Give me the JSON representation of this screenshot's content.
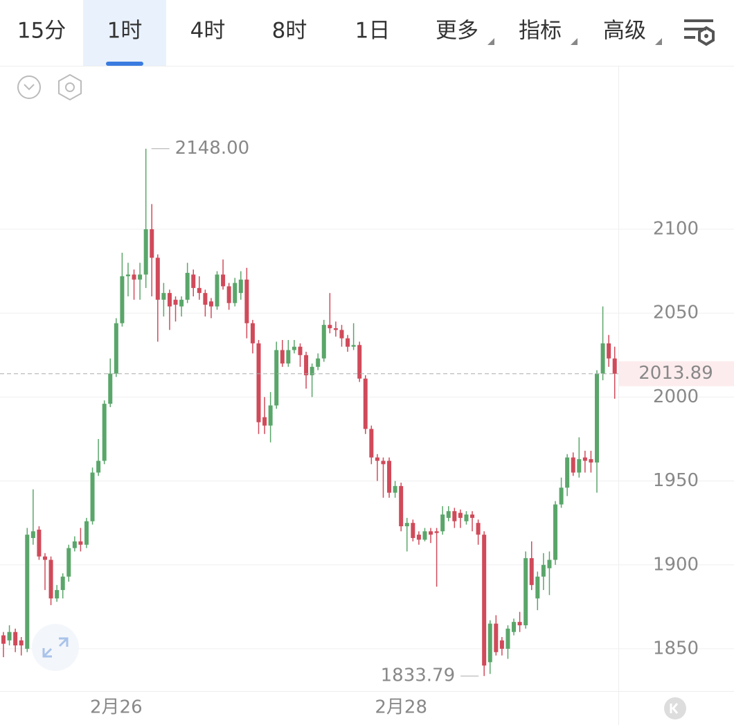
{
  "toolbar": {
    "tabs": [
      "15分",
      "1时",
      "4时",
      "8时",
      "1日",
      "更多",
      "指标",
      "高级"
    ],
    "active": 1
  },
  "chart_data": {
    "type": "candlestick",
    "categories": [
      null,
      null,
      null,
      null,
      null,
      null,
      null,
      null,
      null,
      null,
      null,
      null,
      null,
      null,
      null,
      null,
      null,
      null,
      null,
      "2月26",
      null,
      null,
      null,
      null,
      null,
      null,
      null,
      null,
      null,
      null,
      null,
      null,
      null,
      null,
      null,
      null,
      null,
      null,
      null,
      null,
      null,
      null,
      null,
      null,
      null,
      null,
      null,
      null,
      null,
      null,
      null,
      null,
      null,
      null,
      null,
      null,
      null,
      null,
      null,
      null,
      null,
      null,
      null,
      null,
      null,
      null,
      null,
      "2月28",
      null,
      null,
      null,
      null,
      null,
      null,
      null,
      null,
      null,
      null,
      null,
      null,
      null,
      null,
      null,
      null,
      null,
      null,
      null,
      null,
      null,
      null,
      null,
      null,
      null,
      null,
      null,
      null,
      null,
      null,
      null,
      null,
      null,
      null,
      null,
      null
    ],
    "open": [
      1858,
      1855,
      1860,
      1855,
      1850,
      1916,
      1921,
      1905,
      1903,
      1880,
      1885,
      1893,
      1910,
      1914,
      1912,
      1926,
      1955,
      1962,
      1996,
      2014,
      2044,
      2072,
      2073,
      2070,
      2073,
      2100,
      2083,
      2058,
      2062,
      2058,
      2054,
      2058,
      2073,
      2065,
      2062,
      2057,
      2054,
      2073,
      2066,
      2056,
      2062,
      2070,
      2044,
      2032,
      1988,
      1983,
      1995,
      2028,
      2020,
      2028,
      2030,
      2025,
      2013,
      2018,
      2023,
      2043,
      2041,
      2040,
      2035,
      2030,
      2031,
      2011,
      1981,
      1964,
      1962,
      1962,
      1943,
      1947,
      1923,
      1925,
      1918,
      1915,
      1920,
      1920,
      1920,
      1928,
      1932,
      1931,
      1926,
      1930,
      1925,
      1918,
      1842,
      1865,
      1855,
      1850,
      1860,
      1866,
      1864,
      1904,
      1880,
      1893,
      1898,
      1903,
      1936,
      1946,
      1964,
      1955,
      1964,
      1963,
      1961,
      2014,
      2032,
      2023
    ],
    "high": [
      1860,
      1864,
      1862,
      1857,
      1922,
      1945,
      1923,
      1907,
      1905,
      1888,
      1895,
      1912,
      1917,
      1922,
      1928,
      1958,
      1975,
      1998,
      2023,
      2047,
      2086,
      2080,
      2076,
      2080,
      2148,
      2115,
      2085,
      2068,
      2064,
      2060,
      2060,
      2080,
      2076,
      2072,
      2064,
      2059,
      2075,
      2082,
      2068,
      2071,
      2075,
      2077,
      2046,
      2034,
      2000,
      2003,
      2033,
      2034,
      2034,
      2034,
      2032,
      2027,
      2020,
      2026,
      2046,
      2062,
      2045,
      2043,
      2037,
      2044,
      2033,
      2013,
      1983,
      1966,
      1964,
      1964,
      1950,
      1949,
      1928,
      1927,
      1920,
      1922,
      1922,
      1922,
      1935,
      1935,
      1934,
      1933,
      1932,
      1932,
      1927,
      1920,
      1867,
      1870,
      1857,
      1864,
      1868,
      1872,
      1908,
      1914,
      1896,
      1907,
      1908,
      1938,
      1952,
      1966,
      1967,
      1976,
      1968,
      1968,
      2016,
      2054,
      2037,
      2030
    ],
    "low": [
      1845,
      1852,
      1848,
      1846,
      1848,
      1912,
      1903,
      1885,
      1876,
      1878,
      1880,
      1890,
      1908,
      1908,
      1910,
      1924,
      1953,
      1960,
      1994,
      2012,
      2042,
      2060,
      2058,
      2058,
      2065,
      2060,
      2033,
      2048,
      2040,
      2045,
      2048,
      2056,
      2060,
      2058,
      2048,
      2047,
      2052,
      2064,
      2052,
      2054,
      2058,
      2035,
      2026,
      1978,
      1978,
      1973,
      1993,
      2018,
      2018,
      2026,
      2018,
      2005,
      2000,
      2016,
      2021,
      2038,
      2036,
      2030,
      2027,
      2028,
      2009,
      1978,
      1960,
      1950,
      1940,
      1940,
      1940,
      1920,
      1908,
      1914,
      1912,
      1914,
      1913,
      1887,
      1918,
      1926,
      1922,
      1922,
      1924,
      1920,
      1912,
      1833.79,
      1835,
      1846,
      1846,
      1844,
      1858,
      1860,
      1862,
      1885,
      1873,
      1885,
      1882,
      1900,
      1934,
      1941,
      1953,
      1952,
      1955,
      1955,
      1943,
      2010,
      2018,
      1999
    ],
    "close": [
      1853,
      1860,
      1852,
      1852,
      1918,
      1920,
      1905,
      1903,
      1880,
      1885,
      1893,
      1910,
      1914,
      1912,
      1926,
      1955,
      1962,
      1996,
      2014,
      2044,
      2072,
      2073,
      2070,
      2073,
      2100,
      2083,
      2058,
      2062,
      2054,
      2055,
      2058,
      2074,
      2065,
      2062,
      2055,
      2054,
      2073,
      2066,
      2056,
      2068,
      2070,
      2044,
      2032,
      1985,
      1983,
      1995,
      2028,
      2020,
      2028,
      2030,
      2025,
      2013,
      2018,
      2023,
      2043,
      2041,
      2040,
      2035,
      2030,
      2031,
      2011,
      1981,
      1964,
      1962,
      1960,
      1943,
      1947,
      1923,
      1925,
      1916,
      1915,
      1920,
      1918,
      1919,
      1930,
      1932,
      1926,
      1928,
      1930,
      1928,
      1918,
      1840,
      1865,
      1848,
      1850,
      1862,
      1866,
      1864,
      1904,
      1888,
      1893,
      1900,
      1903,
      1936,
      1946,
      1964,
      1955,
      1963,
      1962,
      1961,
      2014,
      2032,
      2023,
      2013.89
    ],
    "up_color": "#5aa66a",
    "down_color": "#d04a5a",
    "ylim": [
      1824.8,
      2197.4
    ],
    "yticks": [
      1850,
      1900,
      1950,
      2000,
      2050,
      2100
    ],
    "grid": true,
    "max_label": {
      "value": 2148,
      "label": "2148.00"
    },
    "min_label": 1833.79,
    "last_price": 2013.89
  }
}
